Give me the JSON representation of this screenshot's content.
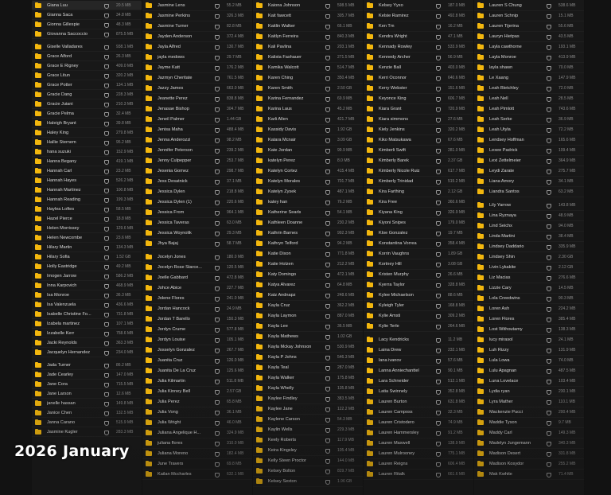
{
  "caption": "2026 January",
  "colors": {
    "folder": "#f3b70e",
    "background": "#181818",
    "text": "#d8d8d8"
  },
  "icons": {
    "folder": "folder-icon",
    "favorite": "heart-icon"
  },
  "columns": [
    {
      "groups": [
        [
          [
            "Giana Luu",
            "20.5 MB"
          ],
          [
            "Gianna Saca",
            "34.8 MB"
          ],
          [
            "Gionna Gillespie",
            "48.3 MB"
          ],
          [
            "Giovanna Saccoccio",
            "875.5 MB"
          ]
        ],
        [
          [
            "Giselle Valladares",
            "938.1 MB"
          ],
          [
            "Grace Alford",
            "26.3 MB"
          ],
          [
            "Grace E Rigney",
            "409.0 MB"
          ],
          [
            "Grace Litun",
            "320.2 MB"
          ],
          [
            "Grace Potter",
            "134.1 MB"
          ],
          [
            "Gracie Dang",
            "228.3 MB"
          ],
          [
            "Gracie Juiani",
            "210.3 MB"
          ],
          [
            "Gracie Pelma",
            "32.4 MB"
          ],
          [
            "Haleigh Bryant",
            "39.8 MB"
          ],
          [
            "Haley King",
            "279.8 MB"
          ],
          [
            "Hallie Sternem",
            "95.2 MB"
          ],
          [
            "hana suzuki",
            "152.9 MB"
          ],
          [
            "Hanna Begany",
            "419.1 MB"
          ],
          [
            "Hannah Carl",
            "23.2 MB"
          ],
          [
            "Hannah Hayes",
            "526.2 MB"
          ],
          [
            "Hannah Martinez",
            "100.8 MB"
          ],
          [
            "Hannah Reading",
            "199.3 MB"
          ],
          [
            "Haylea Loftes",
            "58.5 MB"
          ],
          [
            "Hazel Pierce",
            "18.8 MB"
          ],
          [
            "Helen Morrissey",
            "129.6 MB"
          ],
          [
            "Helen Newcombe",
            "23.6 MB"
          ],
          [
            "Hilary Martin",
            "134.3 MB"
          ],
          [
            "Hilary Sofia",
            "1.52 GB"
          ],
          [
            "Holly Eastridge",
            "49.2 MB"
          ],
          [
            "Imogen Jarrow",
            "586.2 MB"
          ],
          [
            "Inna Karpovich",
            "468.9 MB"
          ],
          [
            "Isa Monroe",
            "36.3 MB"
          ],
          [
            "Isa Valenzuela",
            "436.6 MB"
          ],
          [
            "Isabelle Christine Fo...",
            "731.8 MB"
          ],
          [
            "Izabela martinez",
            "107.1 MB"
          ],
          [
            "Izzabelle Kerr",
            "758.6 MB"
          ],
          [
            "Jacki Reynolds",
            "363.3 MB"
          ],
          [
            "Jacquelyn Hernandez",
            "234.0 MB"
          ]
        ],
        [
          [
            "Jada Turner",
            "86.2 MB"
          ],
          [
            "Jade Cearley",
            "147.0 MB"
          ],
          [
            "Jane Cora",
            "715.5 MB"
          ],
          [
            "Jane Larson",
            "12.6 MB"
          ],
          [
            "janelle hassan",
            "149.8 MB"
          ],
          [
            "Janice Chen",
            "132.5 MB"
          ],
          [
            "Janna Carano",
            "515.9 MB"
          ],
          [
            "Jasmine Kugler",
            "283.3 MB"
          ]
        ]
      ]
    },
    {
      "groups": [
        [
          [
            "Jasmine Lens",
            "55.2 MB"
          ],
          [
            "Jasmine Perkins",
            "326.3 MB"
          ],
          [
            "Jasmine Turner",
            "82.8 MB"
          ],
          [
            "Jayden Anderson",
            "372.4 MB"
          ],
          [
            "Jayla Alfred",
            "130.7 MB"
          ],
          [
            "jayla medows",
            "29.7 MB"
          ],
          [
            "Jayme Katt",
            "176.2 MB"
          ],
          [
            "Jazmyn Cheritate",
            "761.5 MB"
          ],
          [
            "Jazzy James",
            "663.0 MB"
          ],
          [
            "Jeanette Perez",
            "838.8 MB"
          ],
          [
            "Jenasae Bishop",
            "304.7 MB"
          ],
          [
            "Jeneil Palmer",
            "1.44 GB"
          ],
          [
            "Jenisa Maha",
            "488.4 MB"
          ],
          [
            "Jenna Anderozzi",
            "98.2 MB"
          ],
          [
            "Jennifer Peterson",
            "239.2 MB"
          ],
          [
            "Jenny Culpepper",
            "253.7 MB"
          ],
          [
            "Jesenia Gomez",
            "298.7 MB"
          ],
          [
            "Jess Desatnick",
            "37.1 MB"
          ],
          [
            "Jessica Dylen",
            "218.8 MB"
          ],
          [
            "Jessica Dylen (1)",
            "220.6 MB"
          ],
          [
            "Jessica From",
            "964.1 MB"
          ],
          [
            "Jessica Taveras",
            "63.0 MB"
          ],
          [
            "Jessica Woynolik",
            "29.3 MB"
          ],
          [
            "Jhya Bajaj",
            "58.7 MB"
          ]
        ],
        [
          [
            "Jocelyn Jones",
            "180.0 MB"
          ],
          [
            "Jocelyn Rose Starce...",
            "120.5 MB"
          ],
          [
            "Joelle Gabbard",
            "472.8 MB"
          ],
          [
            "Johce Abice",
            "227.7 MB"
          ],
          [
            "Jolene Flores",
            "241.0 MB"
          ],
          [
            "Jordan Hancock",
            "24.9 MB"
          ],
          [
            "Jordan T Barello",
            "150.3 MB"
          ],
          [
            "Jordyn Crume",
            "577.8 MB"
          ],
          [
            "Jordyn Louise",
            "105.1 MB"
          ],
          [
            "Josselyn Gonzalez",
            "267.7 MB"
          ],
          [
            "Juanita Cruz",
            "126.0 MB"
          ],
          [
            "Juanita De La Cruz",
            "125.6 MB"
          ],
          [
            "Julia Kilmartin",
            "511.8 MB"
          ],
          [
            "Julia Kinney Bell",
            "2.57 GB"
          ],
          [
            "Julia Perez",
            "65.8 MB"
          ],
          [
            "Julia Vong",
            "36.1 MB"
          ],
          [
            "Julia Wright",
            "46.0 MB"
          ],
          [
            "Juliana Angelique H...",
            "324.9 MB"
          ],
          [
            "juliana flores",
            "310.0 MB"
          ],
          [
            "Juliana Moreno",
            "182.4 MB"
          ],
          [
            "June Travers",
            "69.8 MB"
          ],
          [
            "Kailan Mccharles",
            "632.1 MB"
          ]
        ]
      ]
    },
    {
      "groups": [
        [
          [
            "Kaiona Johnson",
            "598.5 MB"
          ],
          [
            "Kait fawcett",
            "305.7 MB"
          ],
          [
            "Kaitlin Walker",
            "66.1 MB"
          ],
          [
            "Kaitlyn Ferreira",
            "840.3 MB"
          ],
          [
            "Kali Pavlina",
            "203.1 MB"
          ],
          [
            "Kalista Fashauer",
            "271.5 MB"
          ],
          [
            "Kamika Walcott",
            "514.7 MB"
          ],
          [
            "Karen Ching",
            "350.4 MB"
          ],
          [
            "Karen Smith",
            "2.50 GB"
          ],
          [
            "Karina Fernandez",
            "69.9 MB"
          ],
          [
            "Karina Laus",
            "45.2 MB"
          ],
          [
            "Karli Allen",
            "421.7 MB",
            "Kassidy Davis",
            "1.92 GB"
          ],
          [
            "Katara Mcnair",
            "3.09 GB"
          ],
          [
            "Kate Jordan",
            "99.9 MB"
          ],
          [
            "katelyn Perez",
            "8.0 MB"
          ],
          [
            "Katelyn Cortez",
            "415.4 MB"
          ],
          [
            "Katelyn Morales",
            "701.7 MB"
          ],
          [
            "Katelyn Zysek",
            "487.1 MB"
          ],
          [
            "katey han",
            "76.2 MB"
          ],
          [
            "Katherine Searls",
            "54.1 MB"
          ],
          [
            "Kathleen Doanne",
            "230.2 MB"
          ],
          [
            "Kathrin Barnes",
            "992.3 MB"
          ],
          [
            "Kathryn Telford",
            "94.2 MB"
          ],
          [
            "Katie Dixon",
            "771.8 MB"
          ],
          [
            "Katie Holzen",
            "212.2 MB"
          ],
          [
            "Katy Domingo",
            "472.1 MB"
          ],
          [
            "Katya Alvarez",
            "64.8 MB"
          ],
          [
            "Katz Andnapz",
            "248.6 MB"
          ],
          [
            "Kayla Cruz",
            "362.2 MB"
          ],
          [
            "Kayla Laymon",
            "887.0 MB"
          ],
          [
            "Kayla Lee",
            "36.5 MB"
          ],
          [
            "Kayla Mathews",
            "1.02 GB"
          ],
          [
            "Kayla Mckay Johnson",
            "530.9 MB"
          ],
          [
            "Kayla P Johns",
            "546.3 MB"
          ],
          [
            "Kayla Teal",
            "287.0 MB"
          ],
          [
            "Kayla Walker",
            "175.8 MB"
          ],
          [
            "Kayla Whelly",
            "135.8 MB"
          ],
          [
            "Kaylee Findley",
            "383.5 MB"
          ],
          [
            "Kaylee Jane",
            "122.2 MB"
          ],
          [
            "Kaylene Carson",
            "54.3 MB"
          ],
          [
            "Kaylin Wells",
            "229.3 MB"
          ],
          [
            "Keely Roberts",
            "117.9 MB"
          ],
          [
            "Keira Kingsley",
            "105.4 MB"
          ],
          [
            "Kelly Steen Proctor",
            "144.0 MB"
          ],
          [
            "Kelsey Bolton",
            "829.7 MB"
          ],
          [
            "Kelsey Sexton",
            "1.96 GB"
          ]
        ]
      ]
    },
    {
      "groups": [
        [
          [
            "Kelsey Yyxo",
            "187.0 MB"
          ],
          [
            "Kelsie Ramirez",
            "492.8 MB"
          ],
          [
            "Ken Tm",
            "16.2 MB"
          ],
          [
            "Kendra Wright",
            "47.1 MB"
          ],
          [
            "Kennady Rowley",
            "533.9 MB"
          ],
          [
            "Kennedy Archer",
            "56.9 MB"
          ],
          [
            "Kenzie Ball",
            "403.0 MB"
          ],
          [
            "Kerri Oconnor",
            "640.6 MB"
          ],
          [
            "Kerry Webster",
            "151.6 MB"
          ],
          [
            "Keyonce King",
            "606.7 MB"
          ],
          [
            "Kiara Grant",
            "720.9 MB"
          ],
          [
            "Kiara simmons",
            "27.6 MB"
          ],
          [
            "Kiely Jenkins",
            "320.2 MB"
          ],
          [
            "Kiko Matsukawa",
            "67.6 MB"
          ],
          [
            "Kimberli Swift",
            "281.0 MB"
          ],
          [
            "Kimberly Barek",
            "2.37 GB"
          ],
          [
            "Kimberly Nicole Ruiz",
            "617.7 MB"
          ],
          [
            "Kimberly Trinidad",
            "515.2 MB"
          ],
          [
            "Kira Farthing",
            "2.12 GB"
          ],
          [
            "Kira Free",
            "360.6 MB"
          ],
          [
            "Kiyana King",
            "326.9 MB"
          ],
          [
            "Kiyoni Snipes",
            "179.0 MB"
          ],
          [
            "Kloe Gonzalez",
            "19.7 MB"
          ],
          [
            "Konstantina Vorrea",
            "358.4 MB"
          ],
          [
            "Korrin Vaughns",
            "1.89 GB"
          ],
          [
            "Kortney Hill",
            "3.08 GB"
          ],
          [
            "Kristen Murphy",
            "26.6 MB"
          ],
          [
            "Kyerra Taylor",
            "328.8 MB"
          ],
          [
            "Kylee Michaelson",
            "88.6 MB"
          ],
          [
            "Kyleigh Tyler",
            "168.8 MB"
          ],
          [
            "Kylie Amsti",
            "309.2 MB"
          ],
          [
            "Kylie Terle",
            "264.6 MB"
          ]
        ],
        [
          [
            "Lacy Kendricks",
            "11.2 MB"
          ],
          [
            "Laina Drew",
            "232.1 MB"
          ],
          [
            "lana ivanov",
            "57.6 MB"
          ],
          [
            "Lanna Anniechanttel",
            "90.1 MB"
          ],
          [
            "Lara Schneider",
            "512.1 MB"
          ],
          [
            "Latia Swinnely",
            "352.8 MB"
          ],
          [
            "Lauren Burton",
            "631.8 MB"
          ],
          [
            "Lauren Camposs",
            "32.3 MB"
          ],
          [
            "Lauren Cristodero",
            "74.9 MB"
          ],
          [
            "Lauren Hammersley",
            "91.2 MB"
          ],
          [
            "Lauren Maxwell",
            "138.9 MB"
          ],
          [
            "Lauren Mulrooney",
            "775.1 MB"
          ],
          [
            "Lauren Reigns",
            "606.4 MB"
          ],
          [
            "Lauren Ritalk",
            "661.6 MB"
          ]
        ]
      ]
    },
    {
      "groups": [
        [
          [
            "Lauren S Chung",
            "538.6 MB"
          ],
          [
            "Lauren Schnip",
            "15.1 MB"
          ],
          [
            "Lauren Tijerina",
            "55.6 MB"
          ],
          [
            "Lauryn Hietpas",
            "43.5 MB"
          ],
          [
            "Layla cawthorne",
            "193.1 MB"
          ],
          [
            "Layla Monroe",
            "413.9 MB"
          ],
          [
            "layla shawn",
            "70.0 MB"
          ],
          [
            "Le Xaang",
            "147.9 MB"
          ],
          [
            "Leah Bletchley",
            "72.0 MB"
          ],
          [
            "Leah Nell",
            "28.5 MB"
          ],
          [
            "Leah Pimlott",
            "743.6 MB"
          ],
          [
            "Leah Serke",
            "36.9 MB"
          ],
          [
            "Leah Utyla",
            "72.2 MB"
          ],
          [
            "Lendsey Hoffman",
            "165.6 MB"
          ],
          [
            "Lexee Padrick",
            "109.4 MB"
          ],
          [
            "Lexi Zettelmeier",
            "364.9 MB"
          ],
          [
            "Leydi Zarate",
            "275.7 MB"
          ],
          [
            "Liana Amory",
            "34.1 MB"
          ],
          [
            "Liandra Santos",
            "63.2 MB"
          ]
        ],
        [
          [
            "Lily Yarrow",
            "143.8 MB"
          ],
          [
            "Lina Ryznaya",
            "48.9 MB"
          ],
          [
            "Lind Seichx",
            "94.0 MB"
          ],
          [
            "Linda Martini",
            "38.4 MB"
          ],
          [
            "Lindsey Daddario",
            "335.9 MB"
          ],
          [
            "Lindsey Shin",
            "2.30 GB"
          ],
          [
            "Livin Lykakite",
            "2.12 GB"
          ],
          [
            "Liz Macias",
            "276.6 MB"
          ],
          [
            "Lizzie Cary",
            "14.5 MB"
          ],
          [
            "Lola Creedwins",
            "90.3 MB"
          ],
          [
            "Loren Ash",
            "224.2 MB"
          ],
          [
            "Loren Flores",
            "385.4 MB"
          ],
          [
            "Lost Withoutamy",
            "138.3 MB"
          ],
          [
            "lucy mirasol",
            "24.1 MB"
          ],
          [
            "Luh Rizzy",
            "131.9 MB"
          ],
          [
            "Lula Lowa",
            "74.0 MB"
          ],
          [
            "Lulu Apagnan",
            "487.5 MB"
          ],
          [
            "Luna Lovelace",
            "103.4 MB"
          ],
          [
            "Lydia ryan",
            "230.1 MB"
          ],
          [
            "Lyra Mather",
            "110.1 MB"
          ],
          [
            "Mackenzie Pucci",
            "200.4 MB"
          ],
          [
            "Maddie Tyson",
            "9.7 MB"
          ],
          [
            "Maddy Carl",
            "149.3 MB"
          ],
          [
            "Madelyn Jungemann",
            "340.3 MB"
          ],
          [
            "Madison Desert",
            "331.8 MB"
          ],
          [
            "Madison Kosydor",
            "255.2 MB"
          ],
          [
            "Mak Kwhite",
            "71.4 MB"
          ]
        ]
      ]
    }
  ]
}
